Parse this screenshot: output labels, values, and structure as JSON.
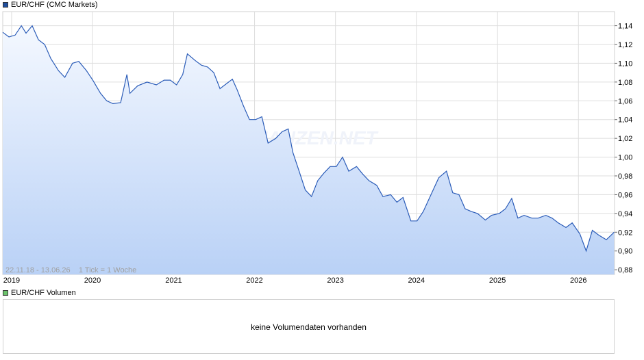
{
  "colors": {
    "price_line": "#2b5cb8",
    "price_legend": "#1f4e9c",
    "volume_legend": "#6cc36c",
    "area_top": "#f4f8ff",
    "area_bottom": "#b9d1f6",
    "grid": "#dddddd"
  },
  "legend": {
    "price": "EUR/CHF (CMC Markets)",
    "volume": "EUR/CHF Volumen"
  },
  "info": "22.11.18 - 13.06.26    1 Tick = 1 Woche",
  "watermark": "FINANZEN.NET",
  "volume_message": "keine Volumendaten vorhanden",
  "chart_data": {
    "type": "area",
    "series": [
      {
        "name": "EUR/CHF (CMC Markets)",
        "points": [
          [
            "2018-11-22",
            1.133
          ],
          [
            "2018-12-20",
            1.128
          ],
          [
            "2019-01-17",
            1.13
          ],
          [
            "2019-02-14",
            1.14
          ],
          [
            "2019-03-07",
            1.132
          ],
          [
            "2019-04-04",
            1.14
          ],
          [
            "2019-05-02",
            1.125
          ],
          [
            "2019-05-30",
            1.12
          ],
          [
            "2019-06-27",
            1.105
          ],
          [
            "2019-08-01",
            1.092
          ],
          [
            "2019-08-29",
            1.085
          ],
          [
            "2019-10-03",
            1.1
          ],
          [
            "2019-10-31",
            1.102
          ],
          [
            "2019-12-05",
            1.092
          ],
          [
            "2020-01-02",
            1.082
          ],
          [
            "2020-02-06",
            1.068
          ],
          [
            "2020-03-05",
            1.06
          ],
          [
            "2020-04-02",
            1.057
          ],
          [
            "2020-05-07",
            1.058
          ],
          [
            "2020-06-04",
            1.088
          ],
          [
            "2020-06-18",
            1.068
          ],
          [
            "2020-07-23",
            1.076
          ],
          [
            "2020-09-03",
            1.08
          ],
          [
            "2020-10-15",
            1.077
          ],
          [
            "2020-11-19",
            1.082
          ],
          [
            "2020-12-17",
            1.082
          ],
          [
            "2021-01-14",
            1.077
          ],
          [
            "2021-02-11",
            1.088
          ],
          [
            "2021-03-04",
            1.11
          ],
          [
            "2021-04-08",
            1.103
          ],
          [
            "2021-05-06",
            1.098
          ],
          [
            "2021-06-03",
            1.096
          ],
          [
            "2021-07-01",
            1.09
          ],
          [
            "2021-07-29",
            1.073
          ],
          [
            "2021-08-26",
            1.078
          ],
          [
            "2021-09-23",
            1.083
          ],
          [
            "2021-10-14",
            1.072
          ],
          [
            "2021-11-11",
            1.055
          ],
          [
            "2021-12-09",
            1.04
          ],
          [
            "2022-01-06",
            1.04
          ],
          [
            "2022-02-03",
            1.043
          ],
          [
            "2022-03-03",
            1.015
          ],
          [
            "2022-04-07",
            1.02
          ],
          [
            "2022-05-05",
            1.027
          ],
          [
            "2022-06-02",
            1.03
          ],
          [
            "2022-06-23",
            1.005
          ],
          [
            "2022-07-21",
            0.985
          ],
          [
            "2022-08-18",
            0.965
          ],
          [
            "2022-09-15",
            0.958
          ],
          [
            "2022-10-13",
            0.975
          ],
          [
            "2022-11-10",
            0.983
          ],
          [
            "2022-12-08",
            0.99
          ],
          [
            "2023-01-05",
            0.99
          ],
          [
            "2023-02-02",
            1.0
          ],
          [
            "2023-03-02",
            0.985
          ],
          [
            "2023-04-06",
            0.99
          ],
          [
            "2023-05-04",
            0.982
          ],
          [
            "2023-06-01",
            0.975
          ],
          [
            "2023-07-06",
            0.97
          ],
          [
            "2023-08-03",
            0.958
          ],
          [
            "2023-09-07",
            0.96
          ],
          [
            "2023-10-05",
            0.952
          ],
          [
            "2023-11-02",
            0.957
          ],
          [
            "2023-12-07",
            0.932
          ],
          [
            "2024-01-04",
            0.932
          ],
          [
            "2024-02-01",
            0.942
          ],
          [
            "2024-03-07",
            0.96
          ],
          [
            "2024-04-11",
            0.978
          ],
          [
            "2024-05-16",
            0.985
          ],
          [
            "2024-06-13",
            0.962
          ],
          [
            "2024-07-11",
            0.96
          ],
          [
            "2024-08-08",
            0.945
          ],
          [
            "2024-09-05",
            0.942
          ],
          [
            "2024-10-03",
            0.94
          ],
          [
            "2024-11-07",
            0.933
          ],
          [
            "2024-12-05",
            0.938
          ],
          [
            "2025-01-09",
            0.94
          ],
          [
            "2025-02-06",
            0.945
          ],
          [
            "2025-03-06",
            0.956
          ],
          [
            "2025-04-03",
            0.935
          ],
          [
            "2025-05-01",
            0.938
          ],
          [
            "2025-06-05",
            0.935
          ],
          [
            "2025-07-03",
            0.935
          ],
          [
            "2025-08-07",
            0.938
          ],
          [
            "2025-09-04",
            0.935
          ],
          [
            "2025-10-02",
            0.93
          ],
          [
            "2025-11-06",
            0.925
          ],
          [
            "2025-12-04",
            0.93
          ],
          [
            "2026-01-08",
            0.918
          ],
          [
            "2026-02-05",
            0.9
          ],
          [
            "2026-03-05",
            0.922
          ],
          [
            "2026-04-02",
            0.917
          ],
          [
            "2026-05-07",
            0.912
          ],
          [
            "2026-06-11",
            0.92
          ]
        ]
      }
    ],
    "x_axis": {
      "type": "time",
      "range": [
        "2018-11-22",
        "2026-06-13"
      ],
      "tick_labels": [
        "2019",
        "2020",
        "2021",
        "2022",
        "2023",
        "2024",
        "2025",
        "2026"
      ]
    },
    "y_axis": {
      "range": [
        0.875,
        1.155
      ],
      "tick_labels": [
        "0,88",
        "0,90",
        "0,92",
        "0,94",
        "0,96",
        "0,98",
        "1,00",
        "1,02",
        "1,04",
        "1,06",
        "1,08",
        "1,10",
        "1,12",
        "1,14"
      ],
      "position": "right"
    },
    "grid": true,
    "legend_position": "top-left"
  }
}
